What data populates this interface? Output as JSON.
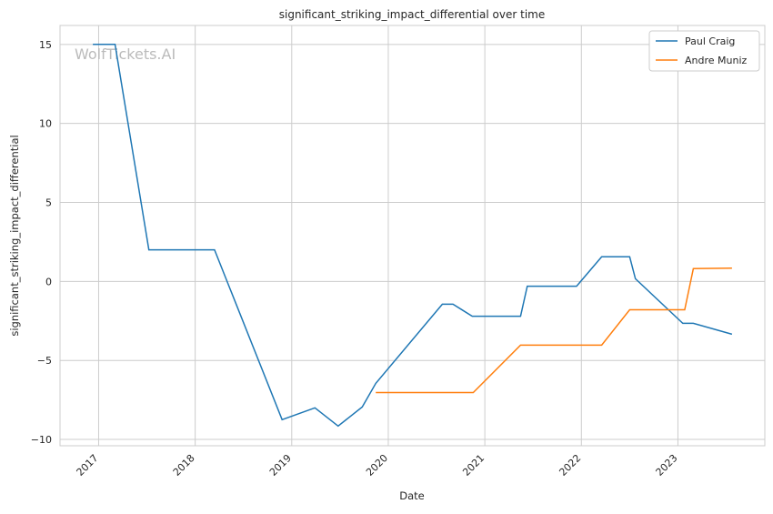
{
  "chart_data": {
    "type": "line",
    "title": "significant_striking_impact_differential over time",
    "xlabel": "Date",
    "ylabel": "significant_striking_impact_differential",
    "watermark": "WolfTickets.AI",
    "xlim": [
      2016.6,
      2023.9
    ],
    "ylim": [
      -10.4,
      16.2
    ],
    "x_ticks": [
      2017,
      2018,
      2019,
      2020,
      2021,
      2022,
      2023
    ],
    "x_tick_labels": [
      "2017",
      "2018",
      "2019",
      "2020",
      "2021",
      "2022",
      "2023"
    ],
    "y_ticks": [
      -10,
      -5,
      0,
      5,
      10,
      15
    ],
    "y_tick_labels": [
      "−10",
      "−5",
      "0",
      "5",
      "10",
      "15"
    ],
    "grid": true,
    "legend_position": "top-right",
    "series": [
      {
        "name": "Paul Craig",
        "color": "#1f77b4",
        "x": [
          2016.94,
          2017.17,
          2017.52,
          2018.2,
          2018.9,
          2019.24,
          2019.48,
          2019.73,
          2019.87,
          2020.56,
          2020.67,
          2020.87,
          2021.37,
          2021.44,
          2021.95,
          2022.21,
          2022.5,
          2022.56,
          2023.05,
          2023.16,
          2023.56
        ],
        "y": [
          15,
          15,
          2.0,
          2.0,
          -8.75,
          -8.0,
          -9.15,
          -7.95,
          -6.45,
          -1.44,
          -1.44,
          -2.2,
          -2.2,
          -0.3,
          -0.3,
          1.56,
          1.56,
          0.17,
          -2.65,
          -2.65,
          -3.34
        ]
      },
      {
        "name": "Andre Muniz",
        "color": "#ff7f0e",
        "x": [
          2019.87,
          2020.88,
          2021.37,
          2022.21,
          2022.5,
          2023.07,
          2023.16,
          2023.56
        ],
        "y": [
          -7.03,
          -7.03,
          -4.03,
          -4.03,
          -1.79,
          -1.79,
          0.81,
          0.84
        ]
      }
    ]
  }
}
